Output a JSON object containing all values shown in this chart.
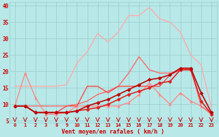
{
  "xlabel": "Vent moyen/en rafales ( km/h )",
  "background_color": "#b8e8e8",
  "grid_color": "#99cccc",
  "x_labels": [
    "0",
    "1",
    "2",
    "3",
    "8",
    "9",
    "10",
    "11",
    "12",
    "13",
    "14",
    "15",
    "16",
    "17",
    "18",
    "19",
    "20",
    "21",
    "22",
    "23"
  ],
  "ylim": [
    4.5,
    41
  ],
  "yticks": [
    5,
    10,
    15,
    20,
    25,
    30,
    35,
    40
  ],
  "lines": [
    {
      "color": "#ffaaaa",
      "linewidth": 1.0,
      "marker": null,
      "y": [
        15.5,
        15.5,
        15.5,
        15.5,
        15.5,
        16.0,
        22.5,
        26.0,
        31.5,
        29.0,
        32.0,
        37.0,
        37.0,
        39.5,
        36.0,
        35.0,
        32.0,
        25.0,
        22.0,
        9.0
      ]
    },
    {
      "color": "#ff8888",
      "linewidth": 1.0,
      "marker": "^",
      "markersize": 2.5,
      "y": [
        9.5,
        19.5,
        12.0,
        7.0,
        7.0,
        7.5,
        9.5,
        9.5,
        9.5,
        9.5,
        9.5,
        10.5,
        13.0,
        16.5,
        13.0,
        10.0,
        13.5,
        11.0,
        9.5,
        7.0
      ]
    },
    {
      "color": "#ff6666",
      "linewidth": 1.0,
      "marker": null,
      "y": [
        9.5,
        9.5,
        9.5,
        9.5,
        9.5,
        9.5,
        10.0,
        11.0,
        13.0,
        14.0,
        15.5,
        19.5,
        24.5,
        20.5,
        19.5,
        19.5,
        20.5,
        21.0,
        9.5,
        7.0
      ]
    },
    {
      "color": "#ff4444",
      "linewidth": 1.0,
      "marker": null,
      "y": [
        9.5,
        9.5,
        7.5,
        7.5,
        7.5,
        9.5,
        9.5,
        15.5,
        15.5,
        13.5,
        15.5,
        15.5,
        15.5,
        15.5,
        15.5,
        19.0,
        20.5,
        20.5,
        11.0,
        7.0
      ]
    },
    {
      "color": "#dd2222",
      "linewidth": 1.2,
      "marker": "D",
      "markersize": 2.5,
      "y": [
        9.5,
        9.5,
        7.5,
        7.5,
        7.5,
        7.5,
        8.0,
        8.5,
        9.0,
        10.0,
        11.5,
        13.0,
        14.0,
        15.0,
        16.5,
        17.0,
        20.5,
        20.5,
        11.0,
        7.0
      ]
    },
    {
      "color": "#bb0000",
      "linewidth": 1.2,
      "marker": "D",
      "markersize": 2.5,
      "y": [
        9.5,
        9.5,
        7.5,
        7.5,
        7.5,
        7.5,
        8.0,
        9.5,
        10.5,
        11.5,
        13.0,
        14.5,
        16.0,
        17.5,
        18.0,
        19.0,
        21.0,
        21.0,
        13.5,
        7.5
      ]
    }
  ],
  "arrow_color": "#cc0000"
}
